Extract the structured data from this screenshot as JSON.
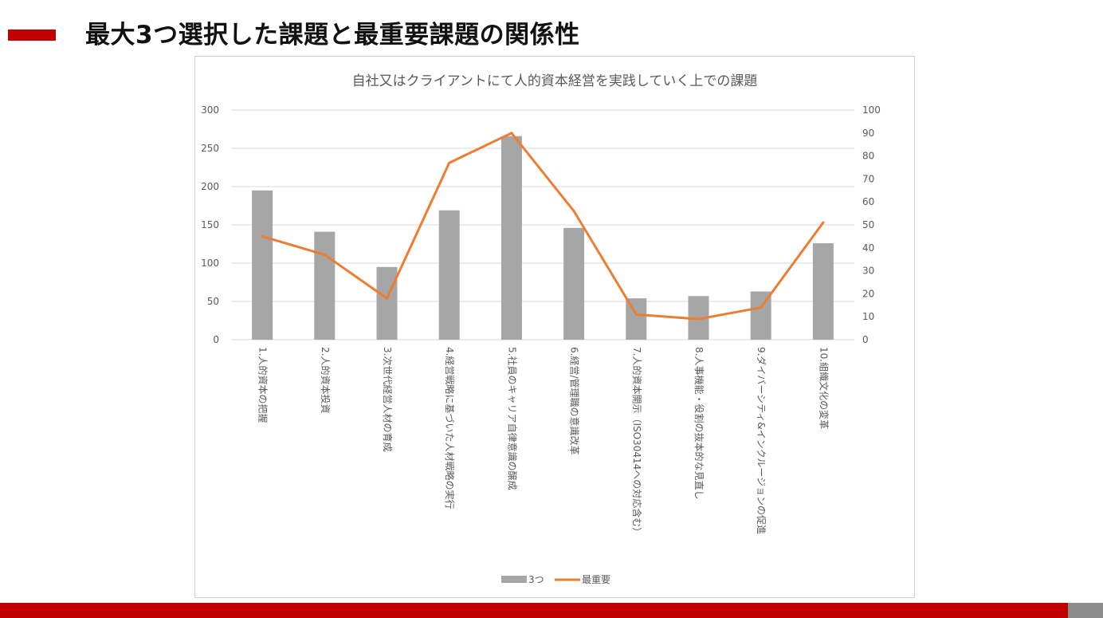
{
  "page": {
    "title": "最大3つ選択した課題と最重要課題の関係性"
  },
  "colors": {
    "accent": "#c00000",
    "bar": "#a6a6a6",
    "line": "#ed7d31",
    "grid": "#d9d9d9",
    "text": "#595959",
    "bottom_gray": "#8c8c8c"
  },
  "chart_data": {
    "type": "bar",
    "title": "自社又はクライアントにて人的資本経営を実践していく上での課題",
    "categories": [
      "1.人的資本の把握",
      "2.人的資本投資",
      "3.次世代経営人材の育成",
      "4.経営戦略に基づいた人材戦略の実行",
      "5.社員のキャリア自律意識の醸成",
      "6.経営/管理職の意識改革",
      "7.人的資本開示（ISO30414への対応含む）",
      "8.人事機能・役割の抜本的な見直し",
      "9.ダイバーシティ&インクルージョンの促進",
      "10.組織文化の変革"
    ],
    "series": [
      {
        "name": "3つ",
        "type": "bar",
        "axis": "left",
        "values": [
          195,
          141,
          95,
          169,
          266,
          146,
          54,
          57,
          63,
          126
        ]
      },
      {
        "name": "最重要",
        "type": "line",
        "axis": "right",
        "values": [
          45,
          37,
          18,
          77,
          90,
          56,
          11,
          9,
          14,
          51
        ]
      }
    ],
    "ylim_left": [
      0,
      300
    ],
    "yticks_left": [
      "0",
      "50",
      "100",
      "150",
      "200",
      "250",
      "300"
    ],
    "ylim_right": [
      0,
      100
    ],
    "yticks_right": [
      "0",
      "10",
      "20",
      "30",
      "40",
      "50",
      "60",
      "70",
      "80",
      "90",
      "100"
    ],
    "grid": true,
    "legend_position": "bottom"
  }
}
